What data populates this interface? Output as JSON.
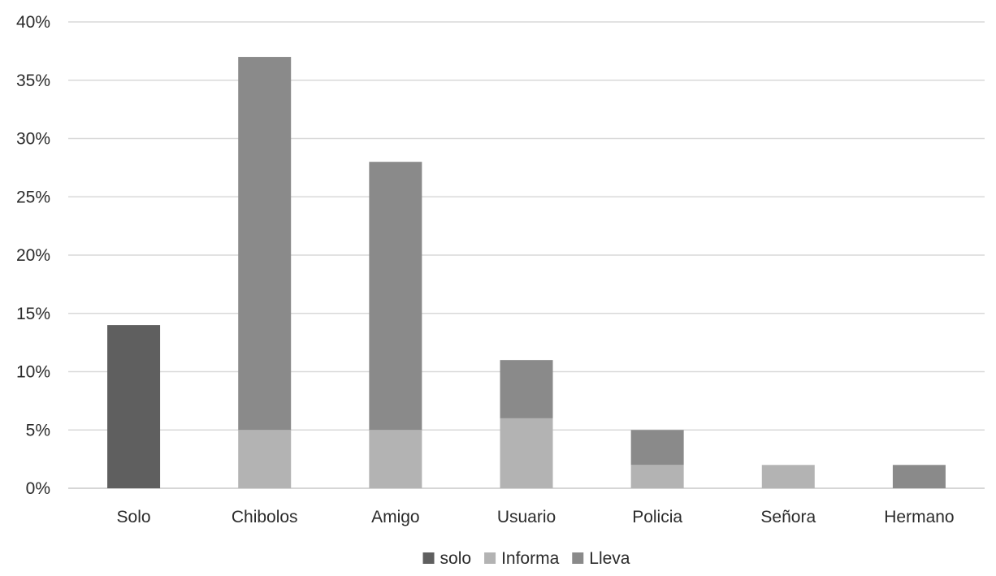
{
  "chart_data": {
    "type": "bar",
    "stacked": true,
    "title": "",
    "xlabel": "",
    "ylabel": "",
    "categories": [
      "Solo",
      "Chibolos",
      "Amigo",
      "Usuario",
      "Policia",
      "Señora",
      "Hermano"
    ],
    "series": [
      {
        "name": "solo",
        "color": "#5f5f5f",
        "values": [
          14,
          0,
          0,
          0,
          0,
          0,
          0
        ]
      },
      {
        "name": "Informa",
        "color": "#b3b3b3",
        "values": [
          0,
          5,
          5,
          6,
          2,
          2,
          0
        ]
      },
      {
        "name": "Lleva",
        "color": "#8a8a8a",
        "values": [
          0,
          32,
          23,
          5,
          3,
          0,
          2
        ]
      }
    ],
    "ylim": [
      0,
      40
    ],
    "yticks": [
      0,
      5,
      10,
      15,
      20,
      25,
      30,
      35,
      40
    ],
    "ytick_labels": [
      "0%",
      "5%",
      "10%",
      "15%",
      "20%",
      "25%",
      "30%",
      "35%",
      "40%"
    ],
    "grid": true,
    "legend_position": "bottom"
  }
}
